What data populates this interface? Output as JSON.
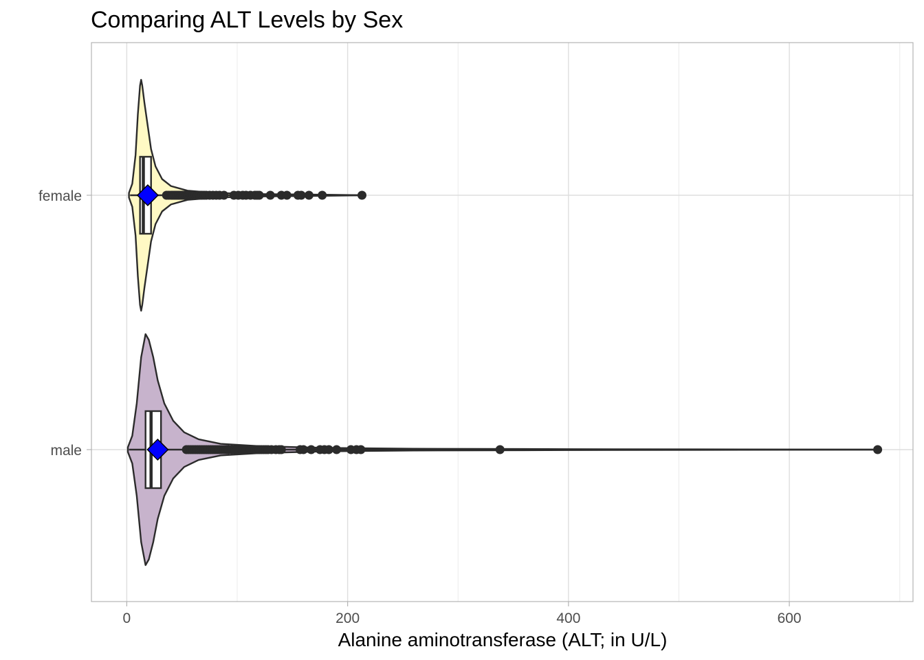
{
  "chart_data": {
    "type": "violin-box",
    "title": "Comparing ALT Levels by Sex",
    "xlabel": "Alanine aminotransferase (ALT; in U/L)",
    "ylabel": "",
    "xlim": [
      -32,
      712
    ],
    "x_ticks": [
      0,
      200,
      400,
      600
    ],
    "x_minor_ticks": [
      100,
      300,
      500,
      700
    ],
    "grid": true,
    "legend": "none",
    "categories": [
      "female",
      "male"
    ],
    "groups": [
      {
        "name": "female",
        "fill": "#fff9c4",
        "box": {
          "q1": 12,
          "median": 15,
          "q3": 22,
          "whisker_low": 3,
          "whisker_high": 213
        },
        "mean": 19,
        "outliers": [
          36,
          38,
          40,
          41,
          42,
          43,
          44,
          45,
          46,
          47,
          48,
          49,
          50,
          51,
          52,
          53,
          54,
          55,
          56,
          57,
          58,
          59,
          60,
          62,
          64,
          66,
          68,
          70,
          72,
          75,
          78,
          81,
          84,
          88,
          97,
          101,
          105,
          108,
          112,
          116,
          118,
          120,
          130,
          140,
          145,
          155,
          158,
          165,
          177,
          213
        ],
        "violin": [
          [
            2,
            0.02
          ],
          [
            5,
            0.1
          ],
          [
            8,
            0.35
          ],
          [
            10,
            0.7
          ],
          [
            12,
            0.95
          ],
          [
            13,
            1.0
          ],
          [
            14,
            0.95
          ],
          [
            16,
            0.8
          ],
          [
            19,
            0.6
          ],
          [
            22,
            0.4
          ],
          [
            26,
            0.25
          ],
          [
            32,
            0.14
          ],
          [
            40,
            0.08
          ],
          [
            55,
            0.04
          ],
          [
            80,
            0.02
          ],
          [
            120,
            0.01
          ],
          [
            180,
            0.005
          ],
          [
            213,
            0
          ]
        ]
      },
      {
        "name": "male",
        "fill": "#c7b3cc",
        "box": {
          "q1": 17,
          "median": 22,
          "q3": 31,
          "whisker_low": 2,
          "whisker_high": 680
        },
        "mean": 28,
        "outliers": [
          54,
          56,
          58,
          60,
          62,
          64,
          66,
          68,
          70,
          72,
          74,
          76,
          78,
          80,
          82,
          84,
          86,
          88,
          90,
          92,
          95,
          98,
          100,
          104,
          108,
          112,
          116,
          118,
          120,
          122,
          124,
          126,
          128,
          131,
          135,
          138,
          140,
          157,
          160,
          167,
          175,
          179,
          183,
          190,
          203,
          208,
          212,
          338,
          680
        ],
        "violin": [
          [
            1,
            0.02
          ],
          [
            5,
            0.12
          ],
          [
            9,
            0.4
          ],
          [
            13,
            0.8
          ],
          [
            17,
            1.0
          ],
          [
            20,
            0.95
          ],
          [
            24,
            0.8
          ],
          [
            28,
            0.6
          ],
          [
            34,
            0.4
          ],
          [
            42,
            0.25
          ],
          [
            52,
            0.15
          ],
          [
            65,
            0.09
          ],
          [
            85,
            0.05
          ],
          [
            120,
            0.03
          ],
          [
            180,
            0.015
          ],
          [
            260,
            0.008
          ],
          [
            400,
            0.004
          ],
          [
            680,
            0
          ]
        ]
      }
    ]
  }
}
